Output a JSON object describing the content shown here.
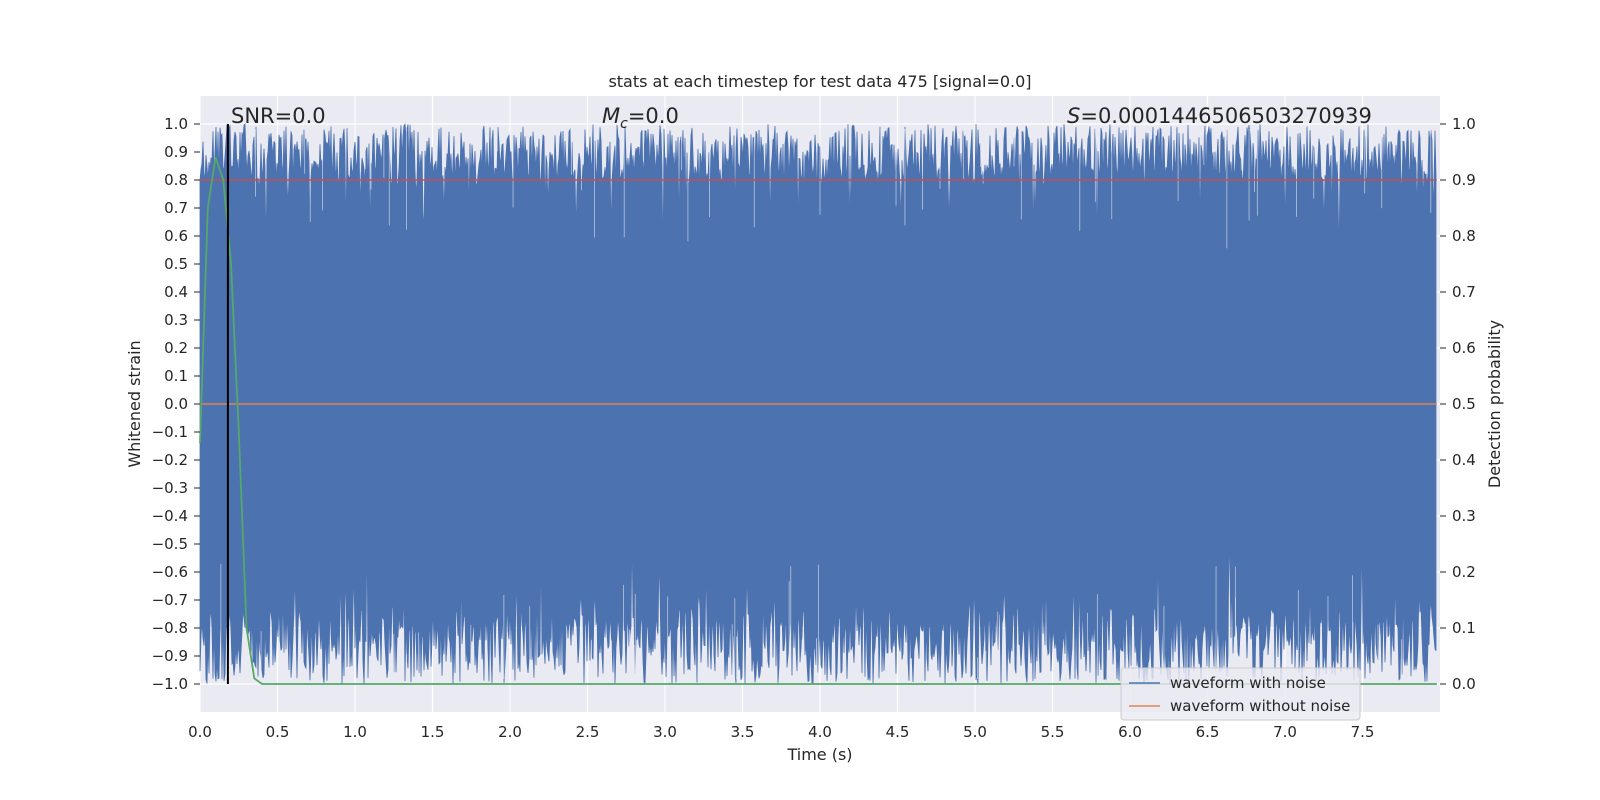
{
  "chart_data": {
    "type": "line",
    "title": "stats at each timestep for test data 475 [signal=0.0]",
    "xlabel": "Time (s)",
    "ylabel": "Whitened strain",
    "ylabel_right": "Detection probability",
    "xlim": [
      0.0,
      8.0
    ],
    "ylim": [
      -1.1,
      1.1
    ],
    "ylim_right": [
      -0.05,
      1.05
    ],
    "x_ticks": [
      0.0,
      0.5,
      1.0,
      1.5,
      2.0,
      2.5,
      3.0,
      3.5,
      4.0,
      4.5,
      5.0,
      5.5,
      6.0,
      6.5,
      7.0,
      7.5
    ],
    "x_tick_labels": [
      "0.0",
      "0.5",
      "1.0",
      "1.5",
      "2.0",
      "2.5",
      "3.0",
      "3.5",
      "4.0",
      "4.5",
      "5.0",
      "5.5",
      "6.0",
      "6.5",
      "7.0",
      "7.5"
    ],
    "y_ticks": [
      1.0,
      0.9,
      0.8,
      0.7,
      0.6,
      0.5,
      0.4,
      0.3,
      0.2,
      0.1,
      0.0,
      -0.1,
      -0.2,
      -0.3,
      -0.4,
      -0.5,
      -0.6,
      -0.7,
      -0.8,
      -0.9,
      -1.0
    ],
    "y_tick_labels": [
      "1.0",
      "0.9",
      "0.8",
      "0.7",
      "0.6",
      "0.5",
      "0.4",
      "0.3",
      "0.2",
      "0.1",
      "0.0",
      "−0.1",
      "−0.2",
      "−0.3",
      "−0.4",
      "−0.5",
      "−0.6",
      "−0.7",
      "−0.8",
      "−0.9",
      "−1.0"
    ],
    "y_right_ticks": [
      1.0,
      0.9,
      0.8,
      0.7,
      0.6,
      0.5,
      0.4,
      0.3,
      0.2,
      0.1,
      0.0
    ],
    "y_right_tick_labels": [
      "1.0",
      "0.9",
      "0.8",
      "0.7",
      "0.6",
      "0.5",
      "0.4",
      "0.3",
      "0.2",
      "0.1",
      "0.0"
    ],
    "grid": true,
    "legend_placement": "lower-right",
    "annotations": {
      "snr": "SNR=0.0",
      "mc_symbol": "M",
      "mc_sub": "c",
      "mc_value": "=0.0",
      "s_symbol": "S",
      "s_value": "=0.0001446506503270939"
    },
    "vline_x": 0.18,
    "series": [
      {
        "name": "waveform with noise",
        "color": "#4c72b0",
        "description": "dense whitened noise filling roughly -1.0 to 1.0 across 0–8 s"
      },
      {
        "name": "waveform without noise",
        "color": "#dd8452",
        "x": [
          0.0,
          7.98
        ],
        "y": [
          0.0,
          0.0
        ]
      },
      {
        "color": "#55a868",
        "axis": "right",
        "x": [
          0.0,
          0.05,
          0.1,
          0.15,
          0.2,
          0.25,
          0.3,
          0.35,
          0.4,
          7.98
        ],
        "y": [
          0.43,
          0.85,
          0.94,
          0.9,
          0.75,
          0.45,
          0.1,
          0.01,
          0.0,
          0.0
        ]
      },
      {
        "color": "#c44e52",
        "axis": "right",
        "x": [
          0.0,
          7.98
        ],
        "y": [
          0.9,
          0.9
        ]
      }
    ]
  },
  "colors": {
    "plot_background": "#eaeaf2",
    "grid": "#ffffff",
    "noise": "#4c72b0",
    "clean": "#dd8452",
    "probability": "#55a868",
    "threshold": "#c44e52",
    "vline": "#000000"
  }
}
